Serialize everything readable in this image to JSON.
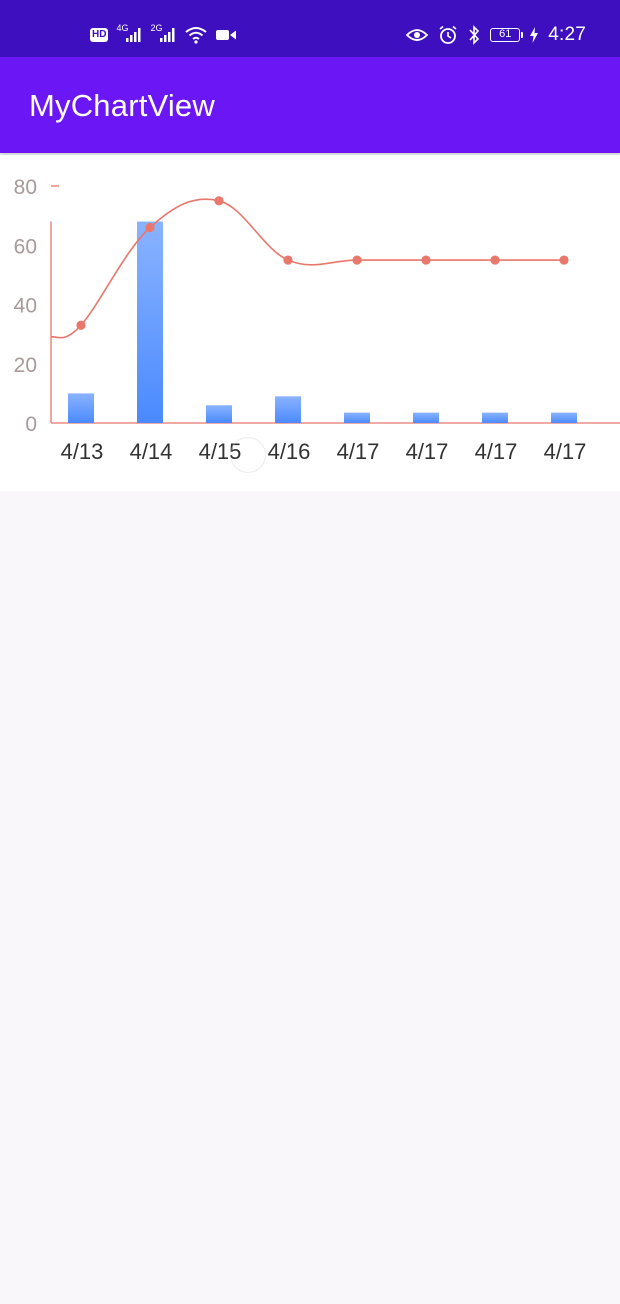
{
  "status_bar": {
    "left_icons": [
      "hd-icon",
      "4g-signal-icon",
      "2g-signal-icon",
      "wifi-icon",
      "video-camera-icon"
    ],
    "hd_label": "HD",
    "net_4g": "4G",
    "net_2g": "2G",
    "right_icons": [
      "eye-comfort-icon",
      "alarm-icon",
      "bluetooth-icon",
      "battery-icon",
      "charging-icon"
    ],
    "battery": "61",
    "time": "4:27"
  },
  "app_bar": {
    "title": "MyChartView"
  },
  "colors": {
    "status_bar": "#3e0fbf",
    "app_bar": "#6b17f5",
    "bar_top": "#8ab3ff",
    "bar_bottom": "#4a8aff",
    "line": "#e8776c",
    "y_tick_label": "#a89a9a",
    "x_tick_label": "#333333"
  },
  "chart_data": {
    "type": "bar",
    "categories": [
      "4/13",
      "4/14",
      "4/15",
      "4/16",
      "4/17",
      "4/17",
      "4/17",
      "4/17"
    ],
    "series": [
      {
        "type": "bar",
        "values": [
          10,
          68,
          6,
          9,
          3.5,
          3.5,
          3.5,
          3.5
        ]
      },
      {
        "type": "line",
        "smooth": true,
        "values": [
          33,
          66,
          75,
          55,
          55,
          55,
          55,
          55
        ]
      }
    ],
    "y_ticks": [
      0,
      20,
      40,
      60,
      80
    ],
    "ylim": [
      0,
      80
    ],
    "grid": false,
    "legend": "none"
  }
}
